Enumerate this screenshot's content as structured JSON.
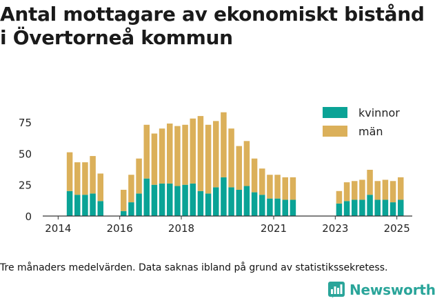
{
  "title_lines": [
    "Antal mottagare av ekonomiskt bistånd",
    "i Övertorneå kommun"
  ],
  "caption": "Tre månaders medelvärden. Data saknas ibland på grund av statistikssekretess.",
  "brand": {
    "name": "Newsworthy",
    "icon": "newsworthy-logo-icon",
    "color": "#2aa59a"
  },
  "colors": {
    "kvinnor": "#0aa396",
    "man": "#dbb05a",
    "axis": "#333333"
  },
  "chart_data": {
    "type": "bar",
    "stacked": true,
    "title": "",
    "xlabel": "",
    "ylabel": "",
    "ylim": [
      0,
      90
    ],
    "y_ticks": [
      0,
      25,
      50,
      75
    ],
    "x_ticks": [
      {
        "label": "2014",
        "x": 2014.0
      },
      {
        "label": "2016",
        "x": 2016.0
      },
      {
        "label": "2018",
        "x": 2018.0
      },
      {
        "label": "2021",
        "x": 2021.0
      },
      {
        "label": "2023",
        "x": 2023.0
      },
      {
        "label": "2025",
        "x": 2025.0
      }
    ],
    "xlim": [
      2013.5,
      2025.5
    ],
    "grid": false,
    "legend_position": "top-right",
    "x": [
      2014.375,
      2014.625,
      2014.875,
      2015.125,
      2015.375,
      2016.125,
      2016.375,
      2016.625,
      2016.875,
      2017.125,
      2017.375,
      2017.625,
      2017.875,
      2018.125,
      2018.375,
      2018.625,
      2018.875,
      2019.125,
      2019.375,
      2019.625,
      2019.875,
      2020.125,
      2020.375,
      2020.625,
      2020.875,
      2021.125,
      2021.375,
      2021.625,
      2023.125,
      2023.375,
      2023.625,
      2023.875,
      2024.125,
      2024.375,
      2024.625,
      2024.875,
      2025.125
    ],
    "series": [
      {
        "name": "kvinnor",
        "values": [
          20,
          17,
          17,
          18,
          12,
          4,
          11,
          18,
          30,
          25,
          26,
          26,
          24,
          25,
          26,
          20,
          18,
          23,
          31,
          23,
          21,
          24,
          19,
          17,
          14,
          14,
          13,
          13,
          10,
          12,
          13,
          13,
          17,
          13,
          13,
          11,
          13
        ]
      },
      {
        "name": "män",
        "values": [
          31,
          26,
          26,
          30,
          22,
          17,
          22,
          28,
          43,
          41,
          44,
          48,
          48,
          48,
          52,
          60,
          55,
          53,
          52,
          47,
          35,
          36,
          27,
          21,
          19,
          19,
          18,
          18,
          10,
          15,
          15,
          16,
          20,
          15,
          16,
          17,
          18
        ]
      }
    ]
  }
}
